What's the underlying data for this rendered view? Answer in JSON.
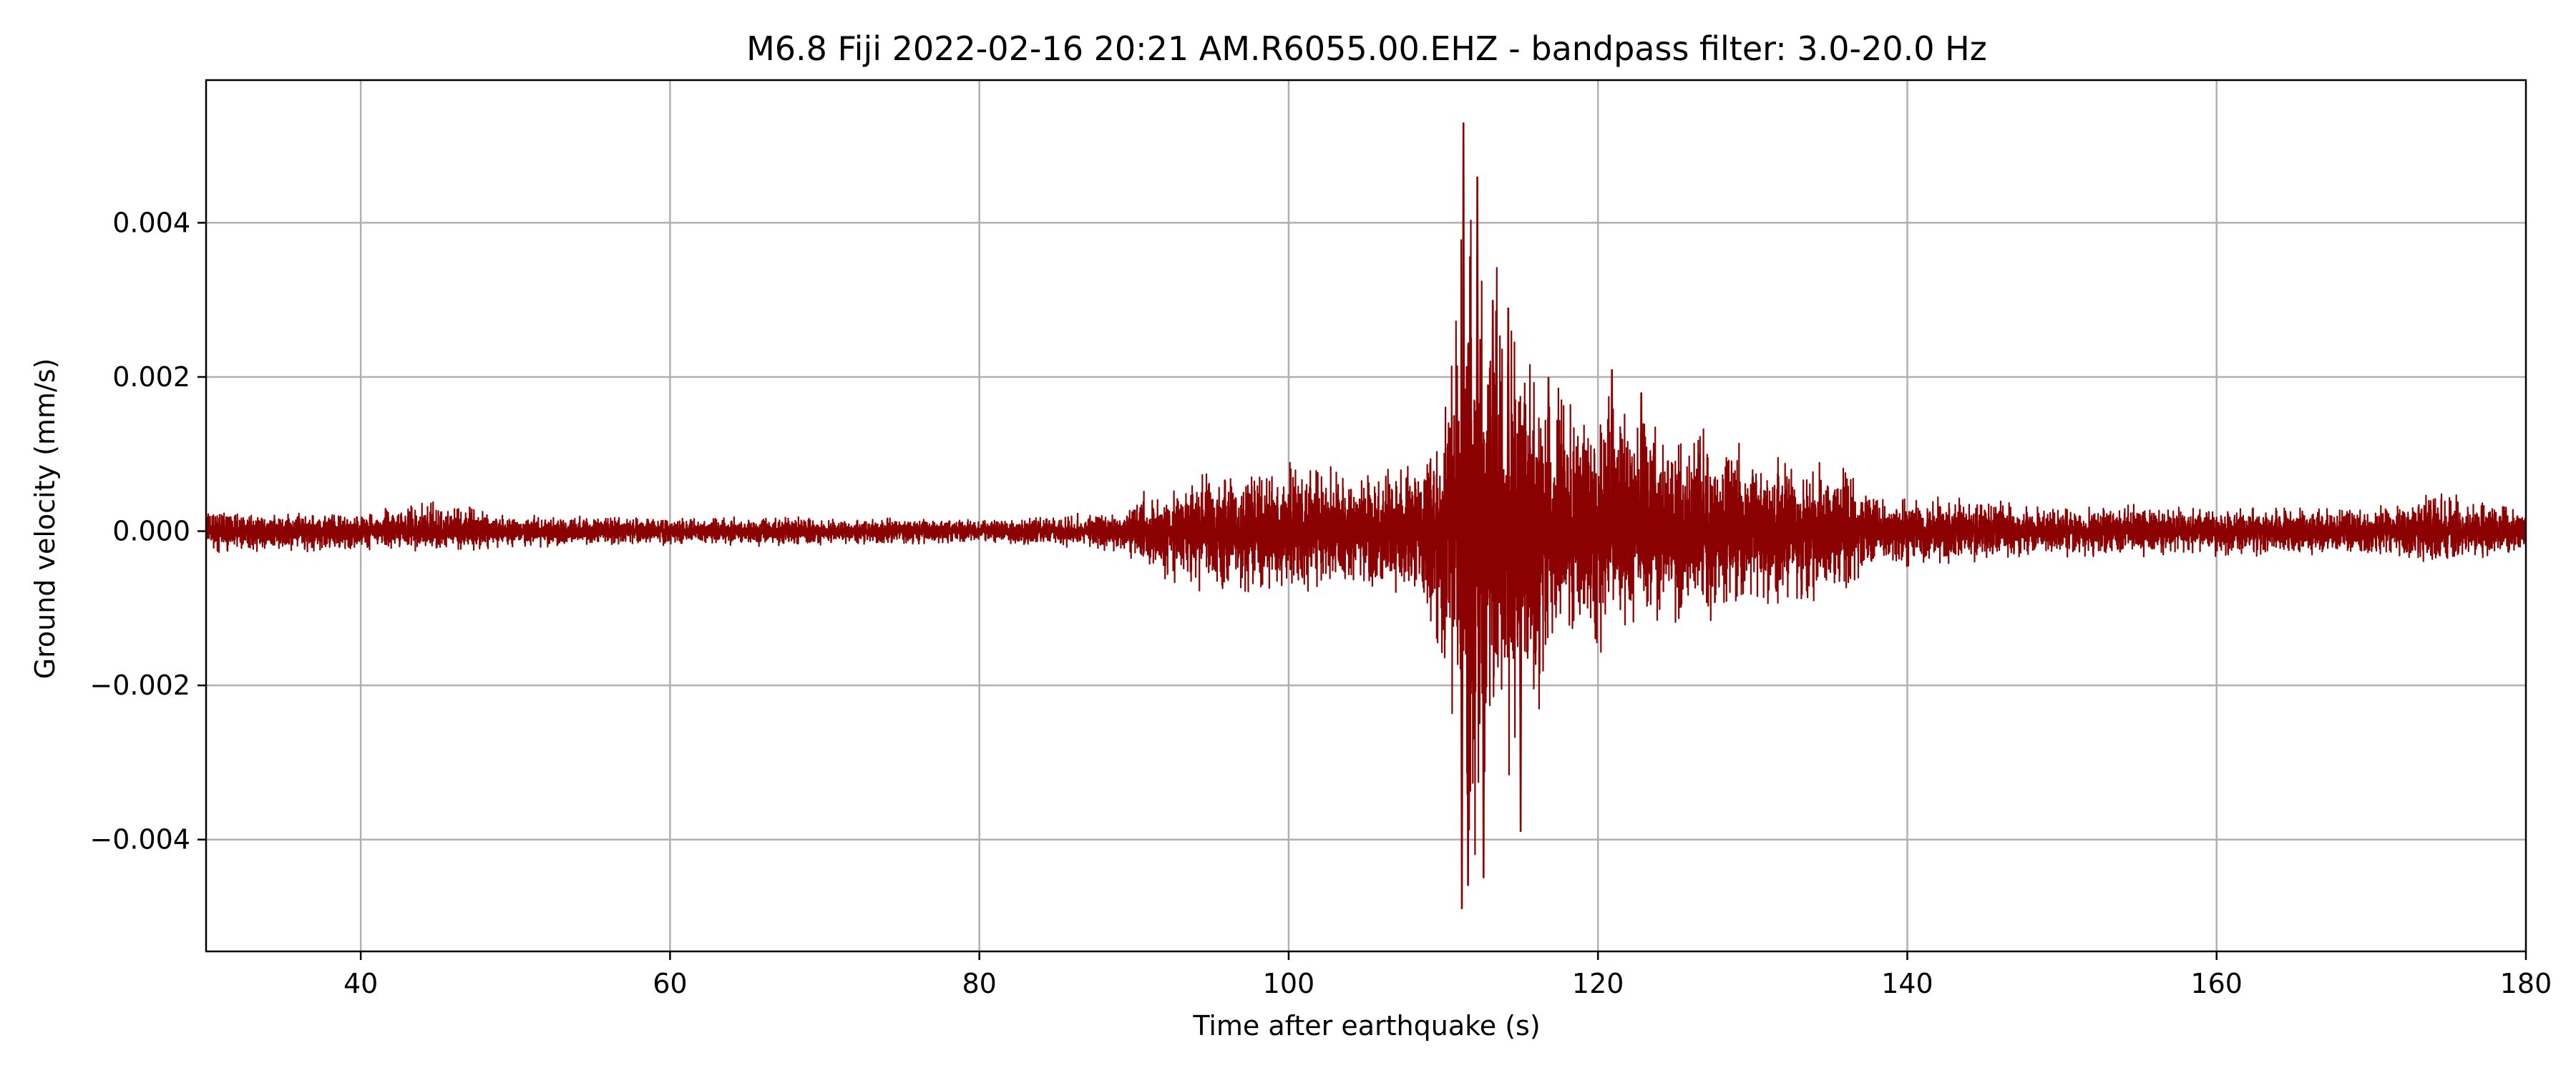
{
  "chart_data": {
    "type": "line",
    "title": "M6.8 Fiji 2022-02-16 20:21 AM.R6055.00.EHZ - bandpass filter: 3.0-20.0 Hz",
    "xlabel": "Time after earthquake (s)",
    "ylabel": "Ground velocity (mm/s)",
    "xlim": [
      30,
      180
    ],
    "ylim": [
      -0.00545,
      0.00585
    ],
    "x_ticks": [
      40,
      60,
      80,
      100,
      120,
      140,
      160,
      180
    ],
    "x_tick_labels": [
      "40",
      "60",
      "80",
      "100",
      "120",
      "140",
      "160",
      "180"
    ],
    "y_ticks": [
      -0.004,
      -0.002,
      0.0,
      0.002,
      0.004
    ],
    "y_tick_labels": [
      "−0.004",
      "−0.002",
      "0.000",
      "0.002",
      "0.004"
    ],
    "grid": true,
    "line_color": "#8b0000",
    "series": [
      {
        "envelope_time_s": [
          30,
          40,
          45,
          50,
          60,
          70,
          80,
          85,
          89.5,
          90.5,
          95,
          100,
          105,
          108,
          110,
          111,
          111.5,
          112,
          113,
          114,
          115,
          116,
          118,
          120,
          121,
          122,
          125,
          128,
          130,
          133,
          136,
          137,
          140,
          145,
          150,
          160,
          170,
          175,
          176,
          180
        ],
        "envelope_upper_mm_s": [
          0.00028,
          0.00026,
          0.00042,
          0.00022,
          0.0002,
          0.0002,
          0.00016,
          0.00024,
          0.00028,
          0.00055,
          0.0008,
          0.0009,
          0.0008,
          0.001,
          0.0015,
          0.0036,
          0.0053,
          0.004,
          0.0046,
          0.003,
          0.0028,
          0.0022,
          0.0021,
          0.0016,
          0.0021,
          0.0018,
          0.0015,
          0.0013,
          0.0012,
          0.001,
          0.00105,
          0.0006,
          0.0005,
          0.00042,
          0.00035,
          0.00035,
          0.00032,
          0.0006,
          0.00045,
          0.00032
        ],
        "envelope_lower_mm_s": [
          -0.00028,
          -0.00026,
          -0.0003,
          -0.00022,
          -0.0002,
          -0.0002,
          -0.00016,
          -0.00024,
          -0.00028,
          -0.0006,
          -0.0009,
          -0.0009,
          -0.0008,
          -0.001,
          -0.0018,
          -0.0034,
          -0.005,
          -0.0046,
          -0.0035,
          -0.0033,
          -0.0039,
          -0.0026,
          -0.0017,
          -0.0018,
          -0.0015,
          -0.0014,
          -0.0013,
          -0.0012,
          -0.0011,
          -0.001,
          -0.0009,
          -0.0006,
          -0.0005,
          -0.00042,
          -0.00035,
          -0.00035,
          -0.00032,
          -0.0005,
          -0.0004,
          -0.00032
        ]
      }
    ]
  }
}
